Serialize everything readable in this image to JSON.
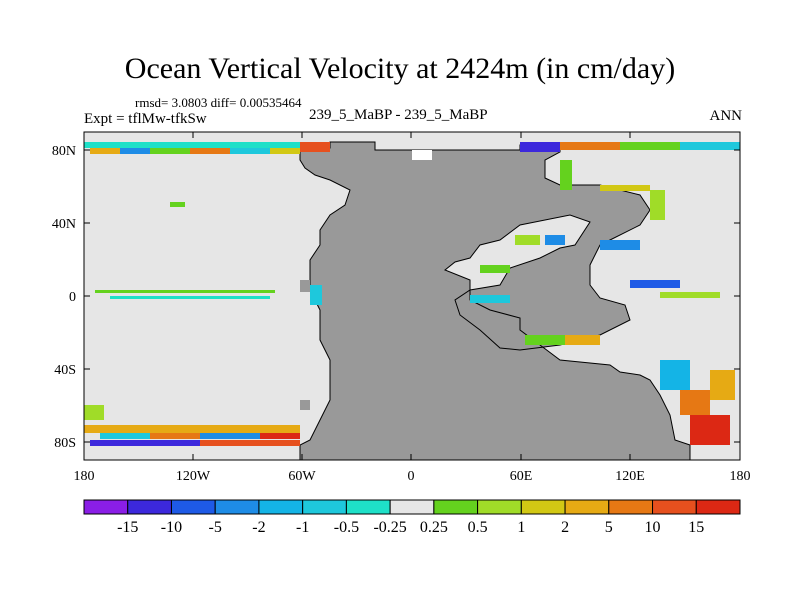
{
  "title": "Ocean Vertical Velocity at 2424m (in cm/day)",
  "stats": "rmsd= 3.0803 diff= 0.00535464",
  "expt": "Expt = tflMw-tfkSw",
  "subtitle": "239_5_MaBP - 239_5_MaBP",
  "season": "ANN",
  "axes": {
    "y_ticks": [
      "80N",
      "40N",
      "0",
      "40S",
      "80S"
    ],
    "x_ticks": [
      "180",
      "120W",
      "60W",
      "0",
      "60E",
      "120E",
      "180"
    ]
  },
  "colorbar": {
    "labels": [
      "-15",
      "-10",
      "-5",
      "-2",
      "-1",
      "-0.5",
      "-0.25",
      "0.25",
      "0.5",
      "1",
      "2",
      "5",
      "10",
      "15"
    ],
    "colors": [
      "#8a1ee6",
      "#3c28dc",
      "#1e5ae6",
      "#1e8ce6",
      "#14b4e6",
      "#1ec8dc",
      "#1ee0c8",
      "#e6e6e6",
      "#64d21e",
      "#a0dc28",
      "#d2c814",
      "#e6aa14",
      "#e67814",
      "#e6501e",
      "#dc2814"
    ]
  },
  "colors": {
    "land": "#999999",
    "ocean_background": "#e6e6e6"
  }
}
